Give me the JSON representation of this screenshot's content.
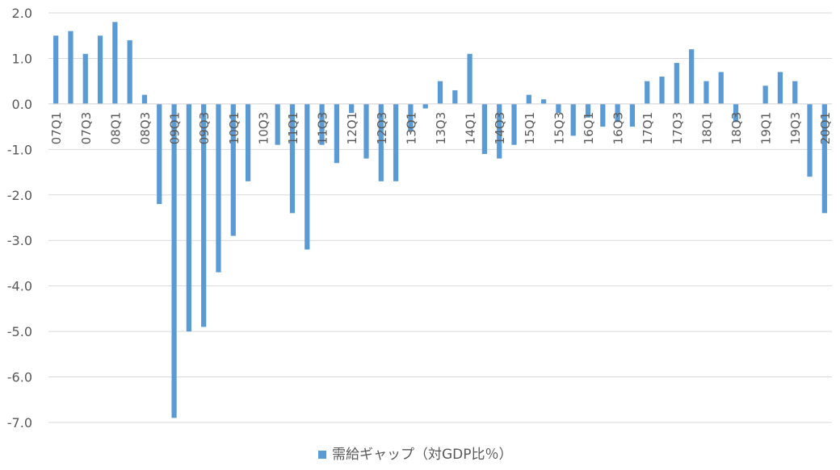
{
  "chart_data": {
    "type": "bar",
    "title": "",
    "xlabel": "",
    "ylabel": "",
    "ylim": [
      -7.0,
      2.0
    ],
    "ytick_step": 1.0,
    "grid": true,
    "legend": {
      "position": "bottom"
    },
    "categories": [
      "07Q1",
      "07Q2",
      "07Q3",
      "07Q4",
      "08Q1",
      "08Q2",
      "08Q3",
      "08Q4",
      "09Q1",
      "09Q2",
      "09Q3",
      "09Q4",
      "10Q1",
      "10Q2",
      "10Q3",
      "10Q4",
      "11Q1",
      "11Q2",
      "11Q3",
      "11Q4",
      "12Q1",
      "12Q2",
      "12Q3",
      "12Q4",
      "13Q1",
      "13Q2",
      "13Q3",
      "13Q4",
      "14Q1",
      "14Q2",
      "14Q3",
      "14Q4",
      "15Q1",
      "15Q2",
      "15Q3",
      "15Q4",
      "16Q1",
      "16Q2",
      "16Q3",
      "16Q4",
      "17Q1",
      "17Q2",
      "17Q3",
      "17Q4",
      "18Q1",
      "18Q2",
      "18Q3",
      "18Q4",
      "19Q1",
      "19Q2",
      "19Q3",
      "19Q4",
      "20Q1"
    ],
    "tick_labels": [
      "07Q1",
      "",
      "07Q3",
      "",
      "08Q1",
      "",
      "08Q3",
      "",
      "09Q1",
      "",
      "09Q3",
      "",
      "10Q1",
      "",
      "10Q3",
      "",
      "11Q1",
      "",
      "11Q3",
      "",
      "12Q1",
      "",
      "12Q3",
      "",
      "13Q1",
      "",
      "13Q3",
      "",
      "14Q1",
      "",
      "14Q3",
      "",
      "15Q1",
      "",
      "15Q3",
      "",
      "16Q1",
      "",
      "16Q3",
      "",
      "17Q1",
      "",
      "17Q3",
      "",
      "18Q1",
      "",
      "18Q3",
      "",
      "19Q1",
      "",
      "19Q3",
      "",
      "20Q1"
    ],
    "series": [
      {
        "name": "需給ギャップ（対GDP比％）",
        "color": "#5b9bd5",
        "values": [
          1.5,
          1.6,
          1.1,
          1.5,
          1.8,
          1.4,
          0.2,
          -2.2,
          -6.9,
          -5.0,
          -4.9,
          -3.7,
          -2.9,
          -1.7,
          0.0,
          -0.9,
          -2.4,
          -3.2,
          -0.9,
          -1.3,
          -0.2,
          -1.2,
          -1.7,
          -1.7,
          -0.6,
          -0.1,
          0.5,
          0.3,
          1.1,
          -1.1,
          -1.2,
          -0.9,
          0.2,
          0.1,
          -0.2,
          -0.7,
          -0.3,
          -0.5,
          -0.4,
          -0.5,
          0.5,
          0.6,
          0.9,
          1.2,
          0.5,
          0.7,
          -0.4,
          0.0,
          0.4,
          0.7,
          0.5,
          -1.6,
          -2.4
        ]
      }
    ]
  }
}
